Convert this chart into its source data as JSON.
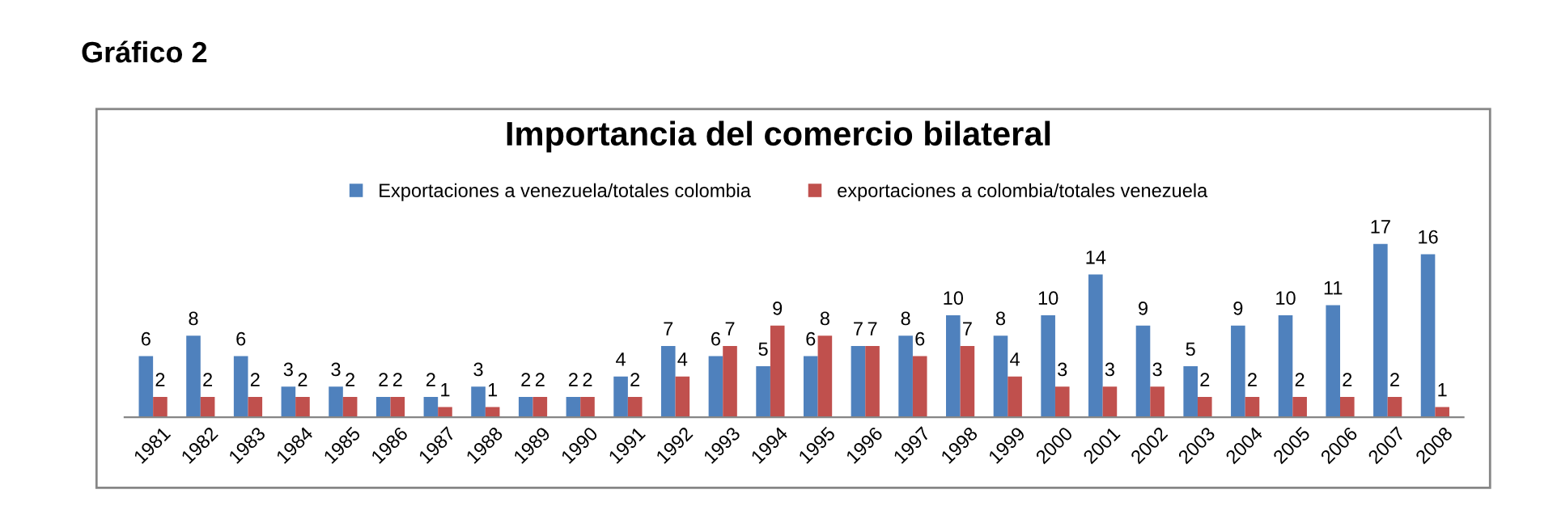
{
  "chart_data": {
    "type": "bar",
    "title": "Importancia del comercio bilateral",
    "annotations": [
      "Gráfico 2"
    ],
    "categories": [
      "1981",
      "1982",
      "1983",
      "1984",
      "1985",
      "1986",
      "1987",
      "1988",
      "1989",
      "1990",
      "1991",
      "1992",
      "1993",
      "1994",
      "1995",
      "1996",
      "1997",
      "1998",
      "1999",
      "2000",
      "2001",
      "2002",
      "2003",
      "2004",
      "2005",
      "2006",
      "2007",
      "2008"
    ],
    "series": [
      {
        "name": "Exportaciones a venezuela/totales colombia",
        "color": "#4f81bd",
        "values": [
          6,
          8,
          6,
          3,
          3,
          2,
          2,
          3,
          2,
          2,
          4,
          7,
          6,
          5,
          6,
          7,
          8,
          10,
          8,
          10,
          14,
          9,
          5,
          9,
          10,
          11,
          17,
          16
        ]
      },
      {
        "name": "exportaciones a colombia/totales venezuela",
        "color": "#c0504d",
        "values": [
          2,
          2,
          2,
          2,
          2,
          2,
          1,
          1,
          2,
          2,
          2,
          4,
          7,
          9,
          8,
          7,
          6,
          7,
          4,
          3,
          3,
          3,
          2,
          2,
          2,
          2,
          2,
          1
        ]
      }
    ],
    "data_labels": true,
    "legend": "top",
    "grid": false,
    "tick_labels": "x"
  }
}
